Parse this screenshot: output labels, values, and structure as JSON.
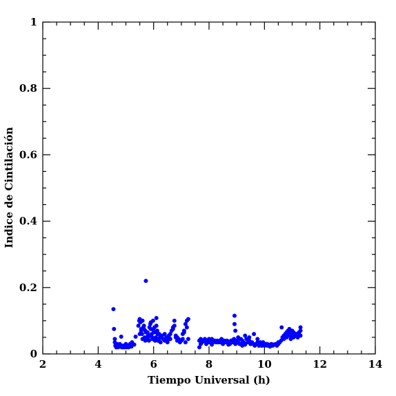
{
  "chart_data": {
    "type": "scatter",
    "xlabel": "Tiempo Universal (h)",
    "ylabel": "Indice de Cintilación",
    "xlim": [
      2,
      14
    ],
    "ylim": [
      0,
      1
    ],
    "x_ticks": [
      2,
      4,
      6,
      8,
      10,
      12,
      14
    ],
    "y_ticks": [
      0,
      0.2,
      0.4,
      0.6,
      0.8,
      1
    ],
    "x_tick_labels": [
      "2",
      "4",
      "6",
      "8",
      "10",
      "12",
      "14"
    ],
    "y_tick_labels": [
      "0",
      "0.2",
      "0.4",
      "0.6",
      "0.8",
      "1"
    ],
    "grid": false,
    "marker_color": "#0000ff",
    "series": [
      {
        "x": [
          4.55,
          4.57,
          4.6,
          4.62,
          4.65,
          4.68,
          4.7,
          4.72,
          4.75,
          4.78,
          4.8,
          4.83,
          4.85,
          4.88,
          4.9,
          4.93,
          4.95,
          4.98,
          5.0,
          5.03,
          5.05,
          5.08,
          5.1,
          5.13,
          5.15,
          5.18,
          5.2,
          5.25,
          5.3,
          5.35,
          4.6,
          4.65,
          4.85,
          5.0,
          5.22,
          5.45,
          5.48,
          5.5,
          5.52,
          5.55,
          5.58,
          5.6,
          5.63,
          5.65,
          5.68,
          5.7,
          5.72,
          5.75,
          5.78,
          5.8,
          5.83,
          5.85,
          5.88,
          5.9,
          5.93,
          5.95,
          5.98,
          6.0,
          6.03,
          6.05,
          6.08,
          6.1,
          6.13,
          6.15,
          6.18,
          6.2,
          6.23,
          6.25,
          5.5,
          5.6,
          5.7,
          5.8,
          5.9,
          6.0,
          6.1,
          6.15,
          5.72,
          5.55,
          5.85,
          6.05,
          5.95,
          5.65,
          5.75,
          6.2,
          6.3,
          6.35,
          6.4,
          6.45,
          6.5,
          6.55,
          6.6,
          6.65,
          6.7,
          6.75,
          6.8,
          6.85,
          6.9,
          6.95,
          7.0,
          7.05,
          7.1,
          7.15,
          7.2,
          7.25,
          6.4,
          6.5,
          6.6,
          6.75,
          6.85,
          6.95,
          7.1,
          7.2,
          7.15,
          6.7,
          6.8,
          7.25,
          6.55,
          7.05,
          7.65,
          7.7,
          7.75,
          7.8,
          7.85,
          7.9,
          7.95,
          8.0,
          8.05,
          8.1,
          8.15,
          8.2,
          8.25,
          8.3,
          8.35,
          8.4,
          8.45,
          8.5,
          8.55,
          8.6,
          8.65,
          8.7,
          8.75,
          8.8,
          8.85,
          8.9,
          8.95,
          9.0,
          9.05,
          9.1,
          9.15,
          9.2,
          9.25,
          9.3,
          9.35,
          9.4,
          9.45,
          9.5,
          7.7,
          7.9,
          8.1,
          8.3,
          8.5,
          8.7,
          8.9,
          9.1,
          9.3,
          9.5,
          7.65,
          8.0,
          8.4,
          8.8,
          9.2,
          8.92,
          8.92,
          8.95,
          9.05,
          9.15,
          9.3,
          9.45,
          9.62,
          9.75,
          9.85,
          9.55,
          9.6,
          9.65,
          9.7,
          9.75,
          9.8,
          9.85,
          9.9,
          9.95,
          10.0,
          10.05,
          10.1,
          10.15,
          10.2,
          10.25,
          10.3,
          10.35,
          10.4,
          10.45,
          10.5,
          9.7,
          9.9,
          10.1,
          10.3,
          10.5,
          10.55,
          10.6,
          10.62,
          10.65,
          10.7,
          10.75,
          10.8,
          10.85,
          10.9,
          10.95,
          11.0,
          11.05,
          11.1,
          11.15,
          11.2,
          11.25,
          11.3,
          10.7,
          10.8,
          10.9,
          11.0,
          11.1,
          11.2,
          11.3,
          10.85,
          10.95,
          11.05,
          11.15,
          11.25,
          11.3,
          11.0,
          11.2
        ],
        "y": [
          0.135,
          0.075,
          0.045,
          0.025,
          0.02,
          0.03,
          0.025,
          0.02,
          0.025,
          0.03,
          0.025,
          0.052,
          0.02,
          0.025,
          0.02,
          0.025,
          0.02,
          0.022,
          0.025,
          0.02,
          0.025,
          0.022,
          0.02,
          0.025,
          0.03,
          0.025,
          0.022,
          0.03,
          0.028,
          0.052,
          0.035,
          0.028,
          0.022,
          0.03,
          0.035,
          0.085,
          0.1,
          0.105,
          0.095,
          0.07,
          0.06,
          0.1,
          0.08,
          0.085,
          0.05,
          0.04,
          0.22,
          0.045,
          0.065,
          0.05,
          0.04,
          0.08,
          0.09,
          0.095,
          0.06,
          0.05,
          0.1,
          0.07,
          0.08,
          0.065,
          0.05,
          0.108,
          0.07,
          0.06,
          0.04,
          0.045,
          0.05,
          0.035,
          0.06,
          0.045,
          0.07,
          0.055,
          0.075,
          0.045,
          0.085,
          0.04,
          0.065,
          0.075,
          0.055,
          0.04,
          0.045,
          0.075,
          0.05,
          0.06,
          0.055,
          0.045,
          0.06,
          0.05,
          0.04,
          0.055,
          0.045,
          0.07,
          0.08,
          0.1,
          0.05,
          0.04,
          0.045,
          0.035,
          0.04,
          0.045,
          0.065,
          0.09,
          0.1,
          0.105,
          0.04,
          0.035,
          0.06,
          0.085,
          0.05,
          0.04,
          0.07,
          0.08,
          0.035,
          0.075,
          0.055,
          0.045,
          0.05,
          0.06,
          0.04,
          0.045,
          0.035,
          0.04,
          0.045,
          0.035,
          0.04,
          0.035,
          0.04,
          0.045,
          0.035,
          0.04,
          0.035,
          0.04,
          0.035,
          0.04,
          0.045,
          0.035,
          0.04,
          0.035,
          0.04,
          0.035,
          0.03,
          0.04,
          0.035,
          0.045,
          0.03,
          0.04,
          0.035,
          0.045,
          0.03,
          0.04,
          0.035,
          0.03,
          0.045,
          0.035,
          0.04,
          0.03,
          0.03,
          0.03,
          0.028,
          0.035,
          0.03,
          0.028,
          0.035,
          0.03,
          0.028,
          0.03,
          0.02,
          0.045,
          0.035,
          0.04,
          0.025,
          0.115,
          0.09,
          0.07,
          0.05,
          0.045,
          0.055,
          0.05,
          0.06,
          0.045,
          0.035,
          0.035,
          0.03,
          0.025,
          0.03,
          0.035,
          0.025,
          0.03,
          0.025,
          0.035,
          0.025,
          0.03,
          0.025,
          0.028,
          0.022,
          0.03,
          0.025,
          0.028,
          0.03,
          0.025,
          0.035,
          0.03,
          0.025,
          0.03,
          0.028,
          0.03,
          0.035,
          0.04,
          0.08,
          0.05,
          0.055,
          0.06,
          0.065,
          0.07,
          0.075,
          0.065,
          0.07,
          0.065,
          0.06,
          0.055,
          0.06,
          0.065,
          0.07,
          0.045,
          0.05,
          0.055,
          0.06,
          0.055,
          0.05,
          0.055,
          0.06,
          0.045,
          0.05,
          0.06,
          0.065,
          0.08,
          0.055,
          0.05
        ]
      }
    ]
  }
}
